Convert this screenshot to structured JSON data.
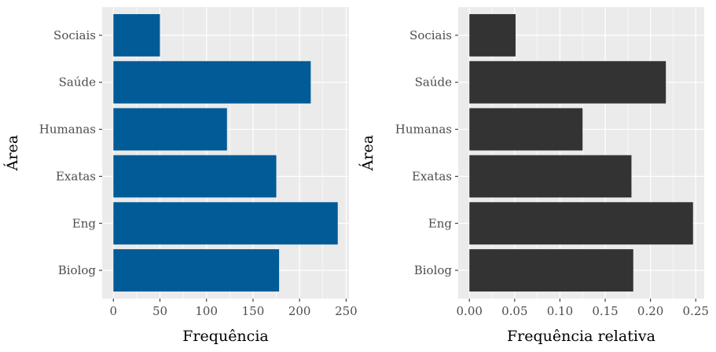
{
  "chart_data": [
    {
      "type": "bar",
      "orientation": "horizontal",
      "categories": [
        "Biolog",
        "Eng",
        "Exatas",
        "Humanas",
        "Saúde",
        "Sociais"
      ],
      "values": [
        178,
        241,
        175,
        122,
        212,
        50
      ],
      "xlabel": "Frequência",
      "ylabel": "Área",
      "xlim": [
        -12.05,
        253.05
      ],
      "xticks": [
        0,
        50,
        100,
        150,
        200,
        250
      ],
      "xtick_labels": [
        "0",
        "50",
        "100",
        "150",
        "200",
        "250"
      ],
      "bar_color": "#005B96",
      "panel_background": "#EBEBEB",
      "grid": true
    },
    {
      "type": "bar",
      "orientation": "horizontal",
      "categories": [
        "Biolog",
        "Eng",
        "Exatas",
        "Humanas",
        "Saúde",
        "Sociais"
      ],
      "values": [
        0.181,
        0.247,
        0.179,
        0.125,
        0.217,
        0.051
      ],
      "xlabel": "Frequência relativa",
      "ylabel": "Área",
      "xlim": [
        -0.01235,
        0.25935
      ],
      "xticks": [
        0.0,
        0.05,
        0.1,
        0.15,
        0.2,
        0.25
      ],
      "xtick_labels": [
        "0.00",
        "0.05",
        "0.10",
        "0.15",
        "0.20",
        "0.25"
      ],
      "bar_color": "#333333",
      "panel_background": "#EBEBEB",
      "grid": true
    }
  ]
}
